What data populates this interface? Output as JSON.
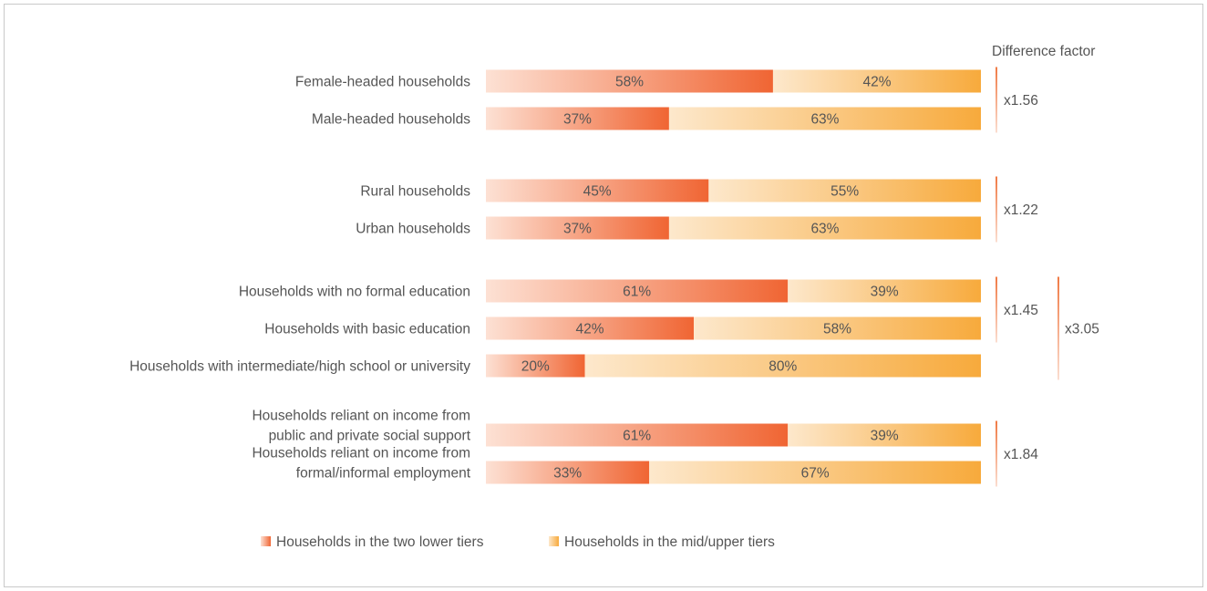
{
  "chart_data": {
    "type": "bar",
    "stacked": true,
    "orientation": "horizontal",
    "value_unit": "%",
    "categories": [
      "Female-headed households",
      "Male-headed households",
      "Rural households",
      "Urban households",
      "Households with no formal education",
      "Households with basic education",
      "Households with intermediate/high school or university",
      [
        "Households reliant on income from",
        "public and private social support"
      ],
      [
        "Households reliant on income from",
        "formal/informal employment"
      ]
    ],
    "series": [
      {
        "name": "Households in the two lower tiers",
        "values": [
          58,
          37,
          45,
          37,
          61,
          42,
          20,
          61,
          33
        ]
      },
      {
        "name": "Households in the mid/upper tiers",
        "values": [
          42,
          63,
          55,
          63,
          39,
          58,
          80,
          39,
          67
        ]
      }
    ],
    "value_labels": [
      [
        "58%",
        "37%",
        "45%",
        "37%",
        "61%",
        "42%",
        "20%",
        "61%",
        "33%"
      ],
      [
        "42%",
        "63%",
        "55%",
        "63%",
        "39%",
        "58%",
        "80%",
        "39%",
        "67%"
      ]
    ],
    "xlim": [
      0,
      100
    ],
    "difference_factor": {
      "title": "Difference factor",
      "brackets": [
        {
          "label": "x1.56",
          "from": 0,
          "to": 1
        },
        {
          "label": "x1.22",
          "from": 2,
          "to": 3
        },
        {
          "label": "x1.45",
          "from": 4,
          "to": 5
        },
        {
          "label": "x3.05",
          "from": 4,
          "to": 6
        },
        {
          "label": "x1.84",
          "from": 7,
          "to": 8
        }
      ]
    },
    "legend_position": "bottom-center",
    "colors": {
      "lower_tier_light": "#fde1d4",
      "lower_tier_dark": "#f06533",
      "upper_tier_light": "#fde8cc",
      "upper_tier_dark": "#f7aa3c",
      "bracket": "#f07a45",
      "text": "#555555"
    }
  }
}
